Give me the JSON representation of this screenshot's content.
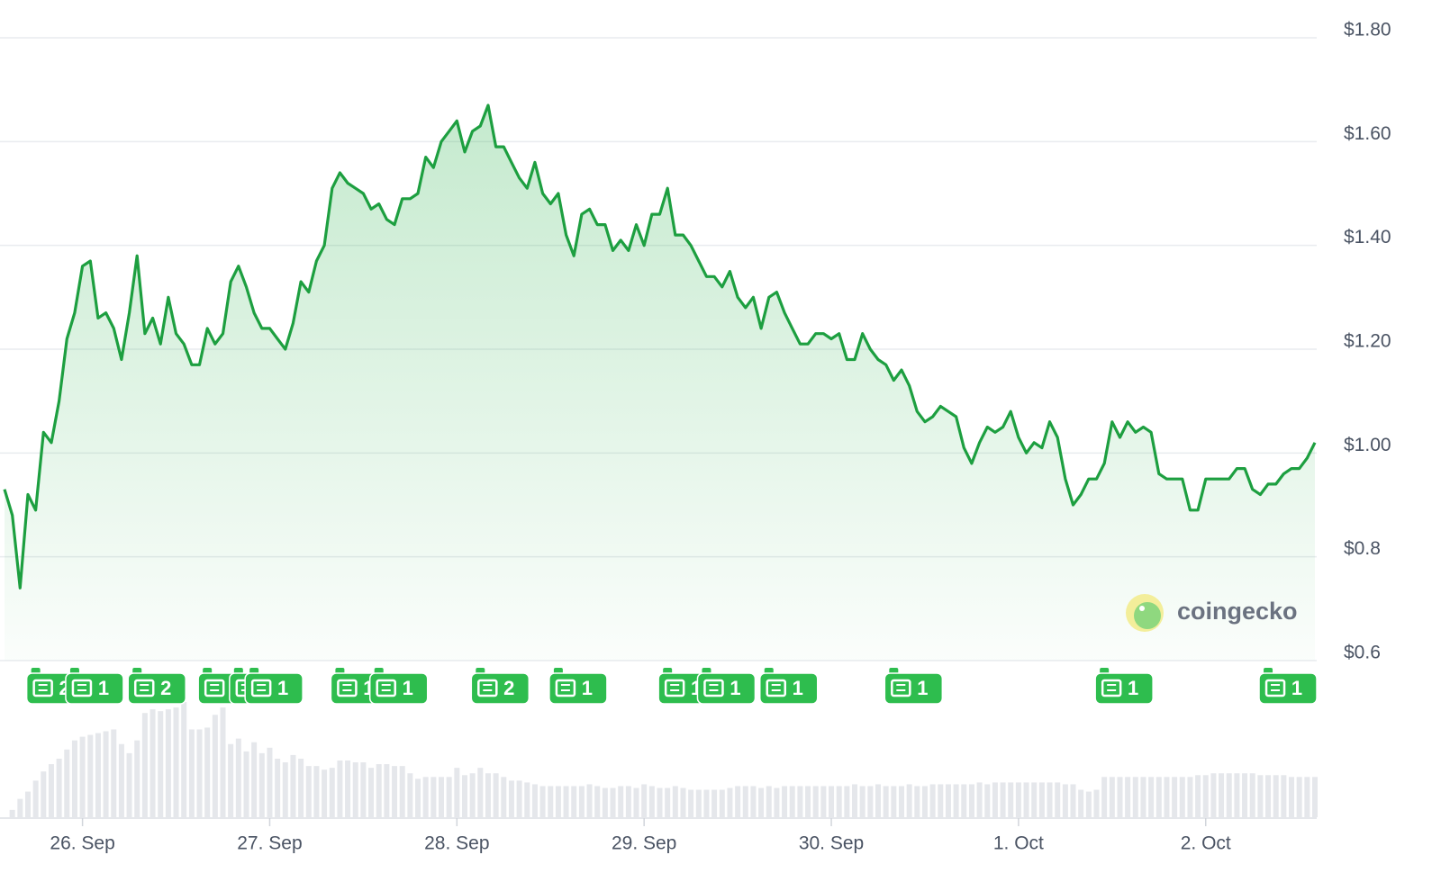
{
  "chart_data": {
    "type": "line",
    "color": "#1d9f40",
    "ylim": [
      0.6,
      1.8
    ],
    "yticks": [
      {
        "value": 0.6,
        "label": "$0.6"
      },
      {
        "value": 0.8,
        "label": "$0.8"
      },
      {
        "value": 1.0,
        "label": "$1.00"
      },
      {
        "value": 1.2,
        "label": "$1.20"
      },
      {
        "value": 1.4,
        "label": "$1.40"
      },
      {
        "value": 1.6,
        "label": "$1.60"
      },
      {
        "value": 1.8,
        "label": "$1.80"
      }
    ],
    "grid": true,
    "watermark": "coingecko",
    "categories": [
      null,
      null,
      null,
      null,
      null,
      null,
      null,
      null,
      null,
      null,
      "26. Sep",
      null,
      null,
      null,
      null,
      null,
      null,
      null,
      null,
      null,
      null,
      null,
      null,
      null,
      null,
      null,
      null,
      null,
      null,
      null,
      null,
      null,
      null,
      null,
      "27. Sep",
      null,
      null,
      null,
      null,
      null,
      null,
      null,
      null,
      null,
      null,
      null,
      null,
      null,
      null,
      null,
      null,
      null,
      null,
      null,
      null,
      null,
      null,
      null,
      "28. Sep",
      null,
      null,
      null,
      null,
      null,
      null,
      null,
      null,
      null,
      null,
      null,
      null,
      null,
      null,
      null,
      null,
      null,
      null,
      null,
      null,
      null,
      null,
      null,
      "29. Sep",
      null,
      null,
      null,
      null,
      null,
      null,
      null,
      null,
      null,
      null,
      null,
      null,
      null,
      null,
      null,
      null,
      null,
      null,
      null,
      null,
      null,
      null,
      null,
      "30. Sep",
      null,
      null,
      null,
      null,
      null,
      null,
      null,
      null,
      null,
      null,
      null,
      null,
      null,
      null,
      null,
      null,
      null,
      null,
      null,
      null,
      null,
      null,
      null,
      "1. Oct",
      null,
      null,
      null,
      null,
      null,
      null,
      null,
      null,
      null,
      null,
      null,
      null,
      null,
      null,
      null,
      null,
      null,
      null,
      null,
      null,
      null,
      null,
      null,
      "2. Oct",
      null,
      null,
      null,
      null,
      null,
      null,
      null,
      null,
      null,
      null,
      null,
      null,
      null,
      null
    ],
    "values": [
      0.93,
      0.88,
      0.74,
      0.92,
      0.89,
      1.04,
      1.02,
      1.1,
      1.22,
      1.27,
      1.36,
      1.37,
      1.26,
      1.27,
      1.24,
      1.18,
      1.27,
      1.38,
      1.23,
      1.26,
      1.21,
      1.3,
      1.23,
      1.21,
      1.17,
      1.17,
      1.24,
      1.21,
      1.23,
      1.33,
      1.36,
      1.32,
      1.27,
      1.24,
      1.24,
      1.22,
      1.2,
      1.25,
      1.33,
      1.31,
      1.37,
      1.4,
      1.51,
      1.54,
      1.52,
      1.51,
      1.5,
      1.47,
      1.48,
      1.45,
      1.44,
      1.49,
      1.49,
      1.5,
      1.57,
      1.55,
      1.6,
      1.62,
      1.64,
      1.58,
      1.62,
      1.63,
      1.67,
      1.59,
      1.59,
      1.56,
      1.53,
      1.51,
      1.56,
      1.5,
      1.48,
      1.5,
      1.42,
      1.38,
      1.46,
      1.47,
      1.44,
      1.44,
      1.39,
      1.41,
      1.39,
      1.44,
      1.4,
      1.46,
      1.46,
      1.51,
      1.42,
      1.42,
      1.4,
      1.37,
      1.34,
      1.34,
      1.32,
      1.35,
      1.3,
      1.28,
      1.3,
      1.24,
      1.3,
      1.31,
      1.27,
      1.24,
      1.21,
      1.21,
      1.23,
      1.23,
      1.22,
      1.23,
      1.18,
      1.18,
      1.23,
      1.2,
      1.18,
      1.17,
      1.14,
      1.16,
      1.13,
      1.08,
      1.06,
      1.07,
      1.09,
      1.08,
      1.07,
      1.01,
      0.98,
      1.02,
      1.05,
      1.04,
      1.05,
      1.08,
      1.03,
      1.0,
      1.02,
      1.01,
      1.06,
      1.03,
      0.95,
      0.9,
      0.92,
      0.95,
      0.95,
      0.98,
      1.06,
      1.03,
      1.06,
      1.04,
      1.05,
      1.04,
      0.96,
      0.95,
      0.95,
      0.95,
      0.89,
      0.89,
      0.95,
      0.95,
      0.95,
      0.95,
      0.97,
      0.97,
      0.93,
      0.92,
      0.94,
      0.94,
      0.96,
      0.97,
      0.97,
      0.99,
      1.02
    ],
    "news_counts": [
      null,
      null,
      null,
      null,
      2,
      null,
      null,
      null,
      null,
      1,
      null,
      null,
      null,
      null,
      null,
      null,
      null,
      2,
      null,
      null,
      null,
      null,
      null,
      null,
      null,
      null,
      1,
      null,
      null,
      null,
      1,
      null,
      1,
      null,
      null,
      null,
      null,
      null,
      null,
      null,
      null,
      null,
      null,
      1,
      null,
      null,
      null,
      null,
      1,
      null,
      null,
      null,
      null,
      null,
      null,
      null,
      null,
      null,
      null,
      null,
      null,
      2,
      null,
      null,
      null,
      null,
      null,
      null,
      null,
      null,
      null,
      1,
      null,
      null,
      null,
      null,
      null,
      null,
      null,
      null,
      null,
      null,
      null,
      null,
      null,
      1,
      null,
      null,
      null,
      null,
      1,
      null,
      null,
      null,
      null,
      null,
      null,
      null,
      1,
      null,
      null,
      null,
      null,
      null,
      null,
      null,
      null,
      null,
      null,
      null,
      null,
      null,
      null,
      null,
      1,
      null,
      null,
      null,
      null,
      null,
      null,
      null,
      null,
      null,
      null,
      null,
      null,
      null,
      null,
      null,
      null,
      null,
      null,
      null,
      null,
      null,
      null,
      null,
      null,
      null,
      null,
      1,
      null,
      null,
      null,
      null,
      null,
      null,
      null,
      null,
      null,
      null,
      null,
      null,
      null,
      null,
      null,
      null,
      null,
      null,
      null,
      null,
      1,
      null,
      null,
      null,
      null,
      null,
      null
    ],
    "volume": [
      0,
      8,
      20,
      28,
      40,
      50,
      58,
      64,
      74,
      84,
      88,
      90,
      92,
      94,
      96,
      80,
      70,
      84,
      114,
      118,
      116,
      118,
      120,
      126,
      96,
      96,
      98,
      112,
      120,
      80,
      86,
      72,
      82,
      70,
      76,
      64,
      60,
      68,
      64,
      56,
      56,
      52,
      54,
      62,
      62,
      60,
      60,
      54,
      58,
      58,
      56,
      56,
      48,
      42,
      44,
      44,
      44,
      44,
      54,
      46,
      48,
      54,
      48,
      48,
      44,
      40,
      40,
      38,
      36,
      34,
      34,
      34,
      34,
      34,
      34,
      36,
      34,
      32,
      32,
      34,
      34,
      32,
      36,
      34,
      32,
      32,
      34,
      32,
      30,
      30,
      30,
      30,
      30,
      32,
      34,
      34,
      34,
      32,
      34,
      32,
      34,
      34,
      34,
      34,
      34,
      34,
      34,
      34,
      34,
      36,
      34,
      34,
      36,
      34,
      34,
      34,
      36,
      34,
      34,
      36,
      36,
      36,
      36,
      36,
      36,
      38,
      36,
      38,
      38,
      38,
      38,
      38,
      38,
      38,
      38,
      38,
      36,
      36,
      30,
      28,
      30,
      44,
      44,
      44,
      44,
      44,
      44,
      44,
      44,
      44,
      44,
      44,
      44,
      46,
      46,
      48,
      48,
      48,
      48,
      48,
      48,
      46,
      46,
      46,
      46,
      44,
      44,
      44,
      44
    ]
  }
}
